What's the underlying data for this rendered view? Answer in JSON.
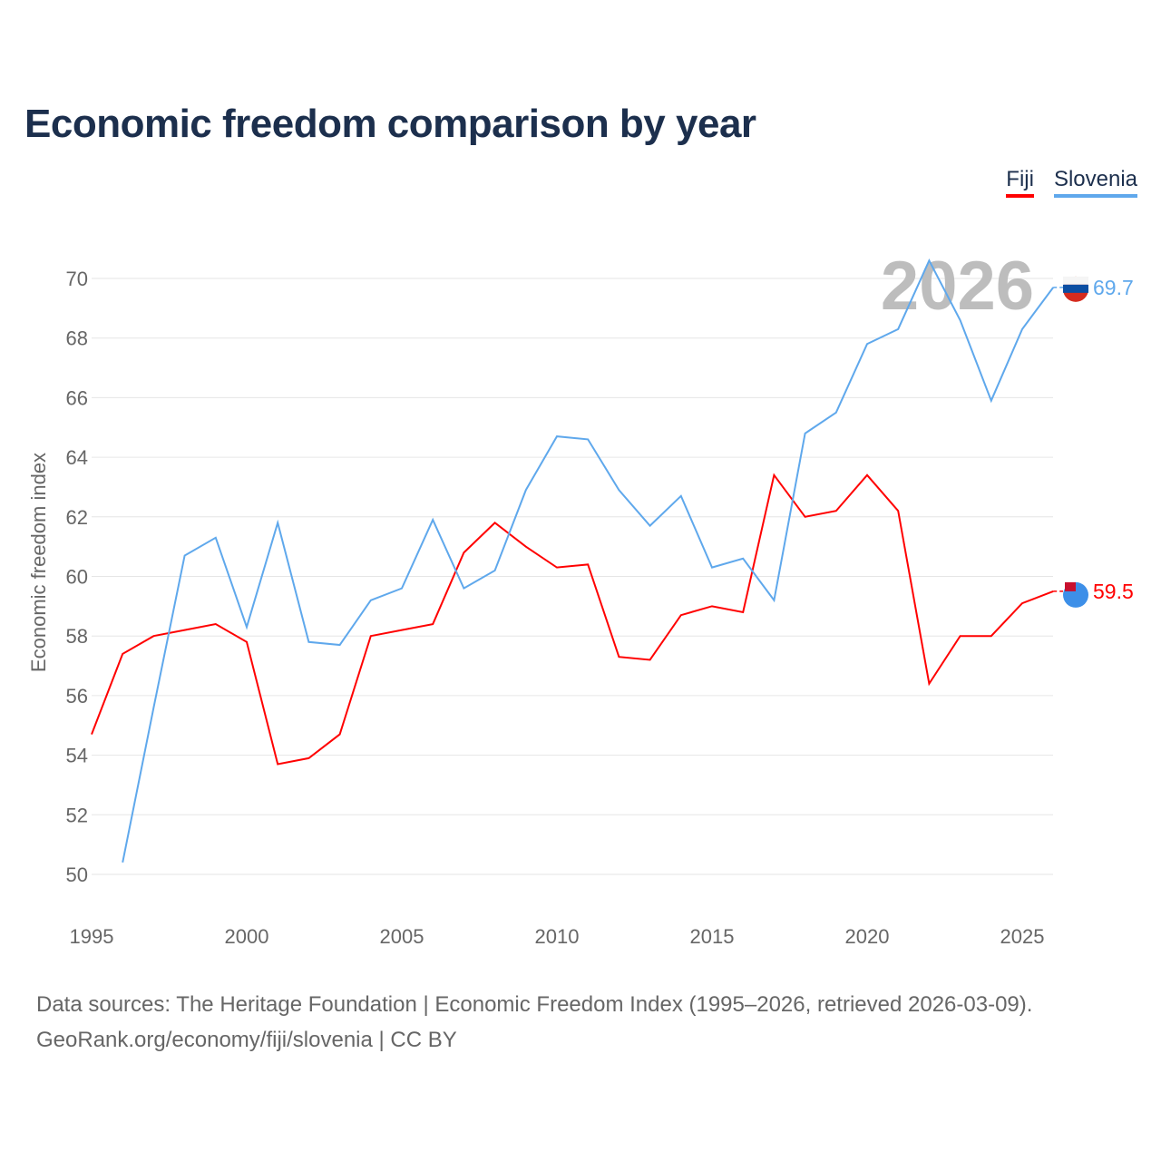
{
  "title": "Economic freedom comparison by year",
  "chart_data": {
    "type": "line",
    "title": "Economic freedom comparison by year",
    "xlabel": "",
    "ylabel": "Economic freedom index",
    "xlim": [
      1995,
      2026
    ],
    "ylim": [
      50,
      70
    ],
    "grid": true,
    "legend_placement": "top-right",
    "x_ticks": [
      "1995",
      "2000",
      "2005",
      "2010",
      "2015",
      "2020",
      "2025"
    ],
    "y_ticks": [
      "50",
      "52",
      "54",
      "56",
      "58",
      "60",
      "62",
      "64",
      "66",
      "68",
      "70"
    ],
    "year_watermark": "2026",
    "series": [
      {
        "name": "Fiji",
        "color": "#ff0000",
        "end_label": "59.5",
        "x": [
          1995,
          1996,
          1997,
          1998,
          1999,
          2000,
          2001,
          2002,
          2003,
          2004,
          2005,
          2006,
          2007,
          2008,
          2009,
          2010,
          2011,
          2012,
          2013,
          2014,
          2015,
          2016,
          2017,
          2018,
          2019,
          2020,
          2021,
          2022,
          2023,
          2024,
          2025,
          2026
        ],
        "values": [
          54.7,
          57.4,
          58.0,
          58.2,
          58.4,
          57.8,
          53.7,
          53.9,
          54.7,
          58.0,
          58.2,
          58.4,
          60.8,
          61.8,
          61.0,
          60.3,
          60.4,
          57.3,
          57.2,
          58.7,
          59.0,
          58.8,
          63.4,
          62.0,
          62.2,
          63.4,
          62.2,
          56.4,
          58.0,
          58.0,
          59.1,
          59.5
        ]
      },
      {
        "name": "Slovenia",
        "color": "#5fa8ec",
        "end_label": "69.7",
        "x": [
          1996,
          1997,
          1998,
          1999,
          2000,
          2001,
          2002,
          2003,
          2004,
          2005,
          2006,
          2007,
          2008,
          2009,
          2010,
          2011,
          2012,
          2013,
          2014,
          2015,
          2016,
          2017,
          2018,
          2019,
          2020,
          2021,
          2022,
          2023,
          2024,
          2025,
          2026
        ],
        "values": [
          50.4,
          55.6,
          60.7,
          61.3,
          58.3,
          61.8,
          57.8,
          57.7,
          59.2,
          59.6,
          61.9,
          59.6,
          60.2,
          62.9,
          64.7,
          64.6,
          62.9,
          61.7,
          62.7,
          60.3,
          60.6,
          59.2,
          64.8,
          65.5,
          67.8,
          68.3,
          70.6,
          68.6,
          65.9,
          68.3,
          69.7
        ]
      }
    ]
  },
  "footer": {
    "line1": "Data sources: The Heritage Foundation | Economic Freedom Index (1995–2026, retrieved 2026-03-09).",
    "line2": "GeoRank.org/economy/fiji/slovenia | CC BY"
  }
}
